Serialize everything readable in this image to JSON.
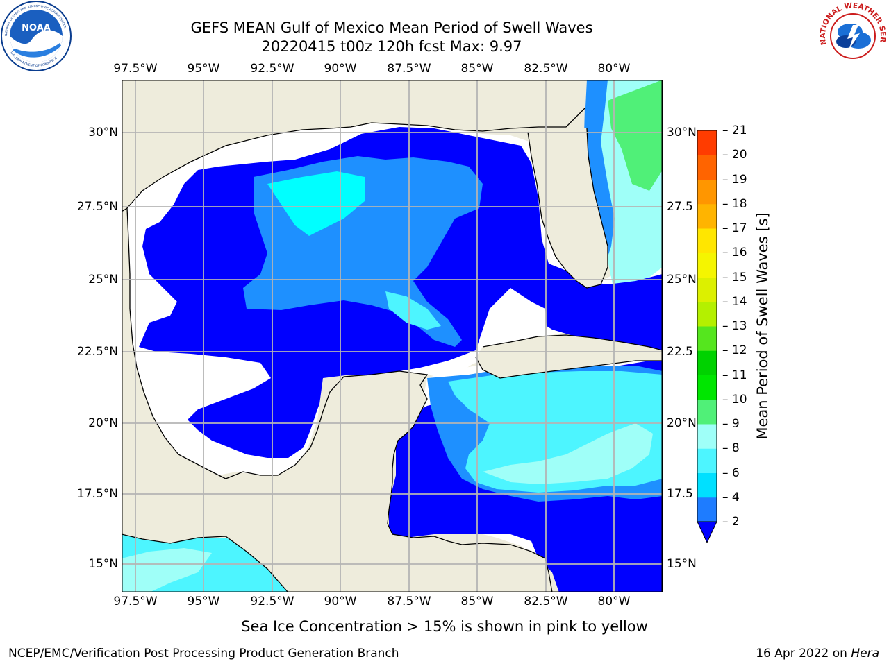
{
  "header": {
    "title_line1": "GEFS MEAN Gulf of Mexico Mean Period of Swell Waves",
    "title_line2": "20220415 t00z 120h fcst   Max: 9.97"
  },
  "logos": {
    "noaa_text": "NOAA",
    "noaa_ring_top": "NATIONAL OCEANIC AND ATMOSPHERIC ADMINISTRATION",
    "noaa_ring_bottom": "U.S. DEPARTMENT OF COMMERCE",
    "nws_ring": "NATIONAL WEATHER SERVICE"
  },
  "map": {
    "lon_labels": [
      "97.5°W",
      "95°W",
      "92.5°W",
      "90°W",
      "87.5°W",
      "85°W",
      "82.5°W",
      "80°W"
    ],
    "lat_labels_left": [
      "30°N",
      "27.5°N",
      "25°N",
      "22.5°N",
      "20°N",
      "17.5°N",
      "15°N"
    ],
    "lat_labels_right": [
      "30°N",
      "27.5",
      "25°N",
      "22.5",
      "20°N",
      "17.5",
      "15°N"
    ],
    "colors": {
      "land": "#eeecdc",
      "swell_2_4": "#0000ff",
      "swell_4_6": "#1e90ff",
      "swell_6_8": "#00ffff",
      "swell_8_9": "#9ffff8",
      "swell_9_10": "#50f078",
      "grid": "#b4b4b4"
    }
  },
  "colorbar": {
    "title": "Mean Period of Swell Waves [s]",
    "ticks": [
      "2",
      "4",
      "6",
      "8",
      "9",
      "10",
      "11",
      "12",
      "13",
      "14",
      "15",
      "16",
      "17",
      "18",
      "19",
      "20",
      "21"
    ],
    "colors": [
      "#1e7cff",
      "#00e0ff",
      "#4df5ff",
      "#9ffff8",
      "#50f078",
      "#00e600",
      "#00d200",
      "#55e61e",
      "#b4f000",
      "#dcf000",
      "#f5f500",
      "#ffe600",
      "#ffb400",
      "#ff9600",
      "#ff6400",
      "#ff3c00",
      "#ff0000"
    ]
  },
  "caption": "Sea Ice Concentration > 15% is shown in pink to yellow",
  "footer": {
    "left": "NCEP/EMC/Verification Post Processing Product Generation Branch",
    "right_date": "16 Apr 2022 on ",
    "right_host": "Hera"
  }
}
